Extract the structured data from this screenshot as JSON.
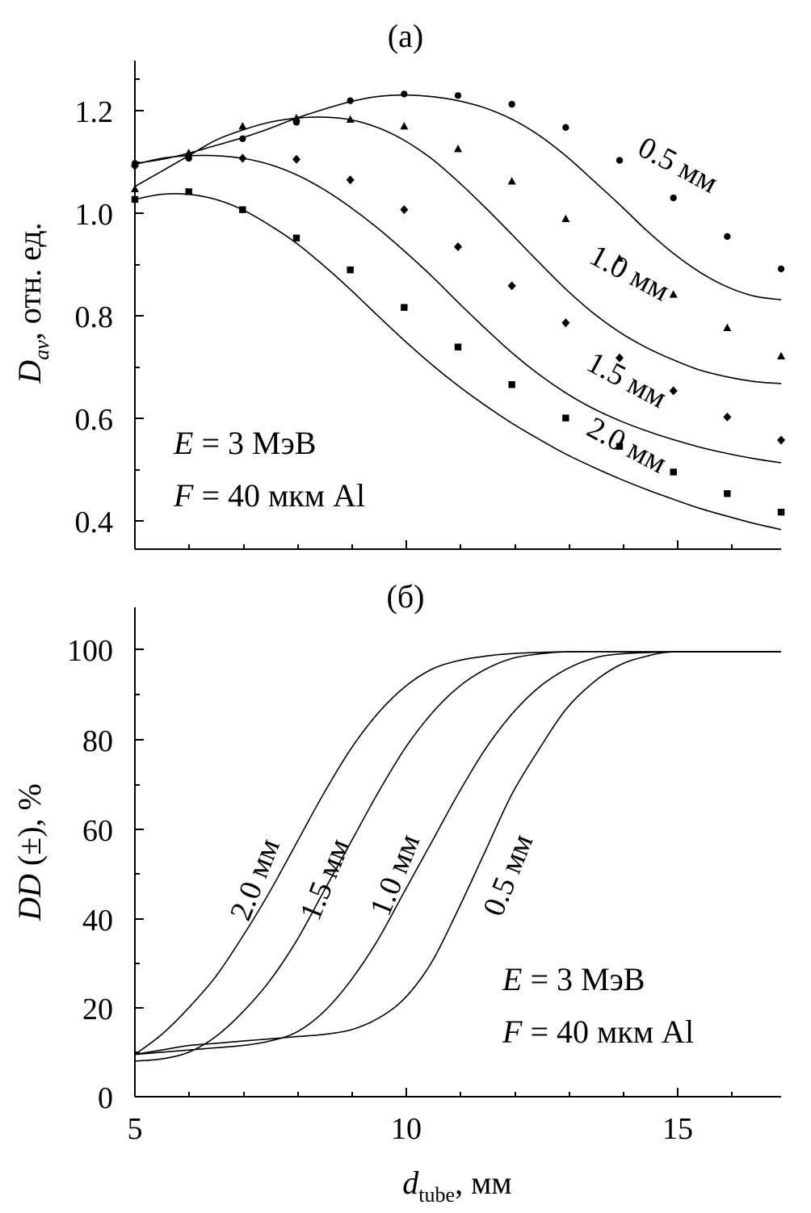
{
  "chart_data": [
    {
      "type": "line",
      "panel_label": "(а)",
      "ylabel": {
        "main": "D",
        "sub": "av",
        "rest": ", отн. ед."
      },
      "xlim": [
        5,
        17
      ],
      "ylim": [
        0.36,
        1.31
      ],
      "yticks": [
        "0.4",
        "0.6",
        "0.8",
        "1.0",
        "1.2"
      ],
      "annotations": [
        {
          "var": "E",
          "rest": " = 3 МэВ"
        },
        {
          "var": "F",
          "rest": " = 40 мкм Al"
        }
      ],
      "series": [
        {
          "name": "0.5 мм",
          "marker": "circle",
          "x": [
            5.0,
            5.5,
            6.0,
            6.5,
            7.0,
            7.5,
            8.0,
            8.5,
            9.0,
            9.5,
            10.0,
            10.5,
            11.0,
            11.5,
            12.0,
            12.5,
            13.0,
            13.5,
            14.0,
            14.5,
            15.0,
            15.5,
            16.0,
            16.5,
            17.0
          ],
          "y": [
            1.11,
            1.118,
            1.13,
            1.145,
            1.16,
            1.178,
            1.198,
            1.215,
            1.23,
            1.24,
            1.243,
            1.24,
            1.232,
            1.218,
            1.196,
            1.165,
            1.125,
            1.078,
            1.03,
            0.98,
            0.935,
            0.898,
            0.87,
            0.852,
            0.845
          ],
          "marker_x": [
            5.0,
            6.0,
            7.0,
            8.0,
            9.0,
            10.0,
            11.0,
            12.0,
            13.0,
            14.0,
            15.0,
            16.0,
            17.0
          ],
          "marker_y": [
            1.11,
            1.12,
            1.158,
            1.19,
            1.232,
            1.245,
            1.242,
            1.225,
            1.18,
            1.116,
            1.043,
            0.968,
            0.905
          ],
          "label_x": 15.0,
          "label_y": 1.09,
          "label_angle": 28
        },
        {
          "name": "1.0 мм",
          "marker": "triangle",
          "x": [
            5.0,
            5.5,
            6.0,
            6.5,
            7.0,
            7.5,
            8.0,
            8.5,
            9.0,
            9.5,
            10.0,
            10.5,
            11.0,
            11.5,
            12.0,
            12.5,
            13.0,
            13.5,
            14.0,
            14.5,
            15.0,
            15.5,
            16.0,
            16.5,
            17.0
          ],
          "y": [
            1.065,
            1.095,
            1.125,
            1.155,
            1.175,
            1.19,
            1.198,
            1.2,
            1.195,
            1.18,
            1.155,
            1.12,
            1.075,
            1.025,
            0.972,
            0.918,
            0.866,
            0.82,
            0.782,
            0.752,
            0.728,
            0.708,
            0.695,
            0.686,
            0.682
          ],
          "marker_x": [
            5.0,
            6.0,
            7.0,
            8.0,
            9.0,
            10.0,
            11.0,
            12.0,
            13.0,
            14.0,
            15.0,
            16.0,
            17.0
          ],
          "marker_y": [
            1.06,
            1.13,
            1.182,
            1.198,
            1.195,
            1.182,
            1.138,
            1.075,
            1.002,
            0.925,
            0.855,
            0.79,
            0.735
          ],
          "label_x": 14.1,
          "label_y": 0.88,
          "label_angle": 28
        },
        {
          "name": "1.5 мм",
          "marker": "diamond",
          "x": [
            5.0,
            5.5,
            6.0,
            6.5,
            7.0,
            7.5,
            8.0,
            8.5,
            9.0,
            9.5,
            10.0,
            10.5,
            11.0,
            11.5,
            12.0,
            12.5,
            13.0,
            13.5,
            14.0,
            14.5,
            15.0,
            15.5,
            16.0,
            16.5,
            17.0
          ],
          "y": [
            1.108,
            1.12,
            1.125,
            1.125,
            1.12,
            1.108,
            1.088,
            1.06,
            1.025,
            0.985,
            0.94,
            0.892,
            0.84,
            0.79,
            0.742,
            0.7,
            0.664,
            0.634,
            0.61,
            0.59,
            0.573,
            0.558,
            0.546,
            0.536,
            0.528
          ],
          "marker_x": [
            5.0,
            6.0,
            7.0,
            8.0,
            9.0,
            10.0,
            11.0,
            12.0,
            13.0,
            14.0,
            15.0,
            16.0,
            17.0
          ],
          "marker_y": [
            1.105,
            1.125,
            1.12,
            1.118,
            1.078,
            1.02,
            0.948,
            0.872,
            0.8,
            0.732,
            0.668,
            0.617,
            0.572
          ],
          "label_x": 14.05,
          "label_y": 0.672,
          "label_angle": 28
        },
        {
          "name": "2.0 мм",
          "marker": "square",
          "x": [
            5.0,
            5.5,
            6.0,
            6.5,
            7.0,
            7.5,
            8.0,
            8.5,
            9.0,
            9.5,
            10.0,
            10.5,
            11.0,
            11.5,
            12.0,
            12.5,
            13.0,
            13.5,
            14.0,
            14.5,
            15.0,
            15.5,
            16.0,
            16.5,
            17.0
          ],
          "y": [
            1.04,
            1.05,
            1.05,
            1.04,
            1.02,
            0.99,
            0.955,
            0.912,
            0.865,
            0.815,
            0.766,
            0.72,
            0.678,
            0.64,
            0.605,
            0.574,
            0.545,
            0.52,
            0.497,
            0.476,
            0.457,
            0.439,
            0.424,
            0.41,
            0.398
          ],
          "marker_x": [
            5.0,
            6.0,
            7.0,
            8.0,
            9.0,
            10.0,
            11.0,
            12.0,
            13.0,
            14.0,
            15.0,
            16.0,
            17.0
          ],
          "marker_y": [
            1.04,
            1.055,
            1.02,
            0.965,
            0.903,
            0.83,
            0.753,
            0.68,
            0.615,
            0.56,
            0.51,
            0.468,
            0.432
          ],
          "label_x": 14.05,
          "label_y": 0.545,
          "label_angle": 28
        }
      ]
    },
    {
      "type": "line",
      "panel_label": "(б)",
      "ylabel": {
        "main": "DD",
        "rest": " (±), %"
      },
      "xlabel": {
        "main": "d",
        "sub": "tube",
        "rest": ", мм"
      },
      "xlim": [
        5,
        17
      ],
      "ylim": [
        0,
        110
      ],
      "xticks": [
        "5",
        "10",
        "15"
      ],
      "yticks": [
        "0",
        "20",
        "40",
        "60",
        "80",
        "100"
      ],
      "annotations": [
        {
          "var": "E",
          "rest": " = 3 МэВ"
        },
        {
          "var": "F",
          "rest": " = 40 мкм Al"
        }
      ],
      "series": [
        {
          "name": "2.0 мм",
          "x": [
            5.0,
            5.5,
            6.0,
            6.5,
            7.0,
            7.5,
            8.0,
            8.5,
            9.0,
            9.5,
            10.0,
            10.5,
            11.0,
            11.5,
            12.0,
            13.0,
            14.0,
            15.0,
            16.0,
            17.0
          ],
          "y": [
            9.5,
            14,
            20,
            27,
            36,
            46,
            57,
            68,
            78,
            86,
            92,
            96,
            98,
            99,
            99.6,
            100,
            100,
            100,
            100,
            100
          ],
          "label_x": 7.4,
          "label_y": 48,
          "label_angle": -68
        },
        {
          "name": "1.5 мм",
          "x": [
            5.0,
            5.5,
            6.0,
            6.5,
            7.0,
            7.5,
            8.0,
            8.5,
            9.0,
            9.5,
            10.0,
            10.5,
            11.0,
            11.5,
            12.0,
            12.5,
            13.0,
            14.0,
            15.0,
            16.0,
            17.0
          ],
          "y": [
            8,
            8.5,
            10,
            13.5,
            19,
            26,
            35,
            46,
            57,
            68,
            78,
            86,
            92,
            96,
            98.5,
            99.5,
            100,
            100,
            100,
            100,
            100
          ],
          "label_x": 8.7,
          "label_y": 48,
          "label_angle": -68
        },
        {
          "name": "1.0 мм",
          "x": [
            5.0,
            5.5,
            6.0,
            6.5,
            7.0,
            7.5,
            8.0,
            8.5,
            9.0,
            9.5,
            10.0,
            10.5,
            11.0,
            11.5,
            12.0,
            12.5,
            13.0,
            13.5,
            14.0,
            15.0,
            16.0,
            17.0
          ],
          "y": [
            9.5,
            10,
            10.5,
            11,
            11.5,
            12.5,
            14.5,
            19,
            26,
            35,
            46,
            57,
            68,
            78,
            86,
            92,
            96,
            98.5,
            99.5,
            100,
            100,
            100
          ],
          "label_x": 10.0,
          "label_y": 49,
          "label_angle": -68
        },
        {
          "name": "0.5 мм",
          "x": [
            5.0,
            5.5,
            6.0,
            6.5,
            7.0,
            7.5,
            8.0,
            8.5,
            9.0,
            9.5,
            10.0,
            10.5,
            11.0,
            11.5,
            12.0,
            12.5,
            13.0,
            13.5,
            14.0,
            14.5,
            15.0,
            16.0,
            17.0
          ],
          "y": [
            9.5,
            10.5,
            11.5,
            12,
            12.5,
            13,
            13.5,
            14,
            15,
            17.5,
            22,
            30,
            42,
            55,
            68,
            78,
            87,
            93,
            97,
            99,
            100,
            100,
            100
          ],
          "label_x": 12.1,
          "label_y": 49,
          "label_angle": -68
        }
      ]
    }
  ]
}
